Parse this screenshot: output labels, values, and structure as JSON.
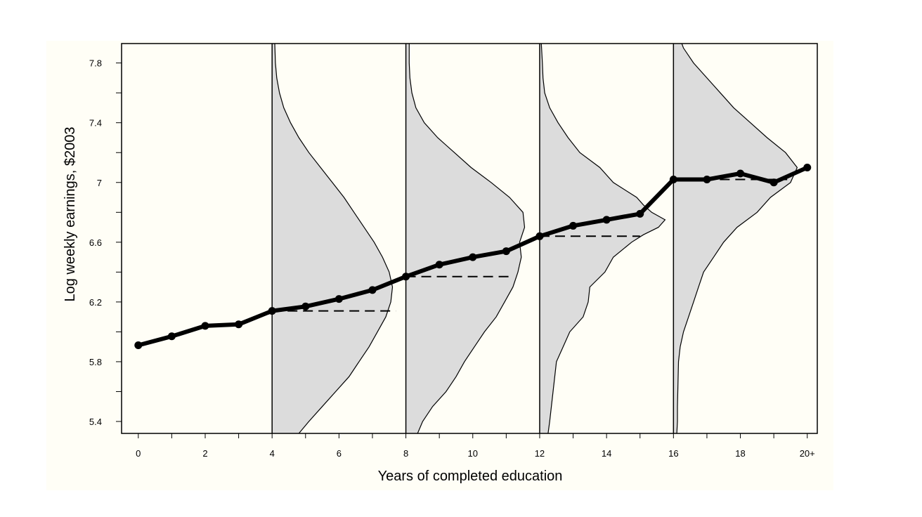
{
  "chart_data": {
    "type": "line",
    "xlabel": "Years of completed education",
    "ylabel": "Log weekly earnings, $2003",
    "xlim": [
      -0.5,
      20.3
    ],
    "ylim": [
      5.32,
      7.93
    ],
    "x_ticks": [
      0,
      2,
      4,
      6,
      8,
      10,
      12,
      14,
      16,
      18,
      20
    ],
    "x_tick_labels": [
      "0",
      "2",
      "4",
      "6",
      "8",
      "10",
      "12",
      "14",
      "16",
      "18",
      "20+"
    ],
    "x_minor_ticks": [
      0,
      1,
      2,
      3,
      4,
      5,
      6,
      7,
      8,
      9,
      10,
      11,
      12,
      13,
      14,
      15,
      16,
      17,
      18,
      19,
      20
    ],
    "y_ticks": [
      5.4,
      5.8,
      6.2,
      6.6,
      7.0,
      7.4,
      7.8
    ],
    "y_tick_labels": [
      "5.4",
      "5.8",
      "6.2",
      "6.6",
      "7",
      "7.4",
      "7.8"
    ],
    "y_minor_ticks": [
      5.4,
      5.6,
      5.8,
      6.0,
      6.2,
      6.4,
      6.6,
      6.8,
      7.0,
      7.2,
      7.4,
      7.6,
      7.8
    ],
    "grid": false,
    "legend": "none",
    "series": [
      {
        "x": [
          0,
          1,
          2,
          3,
          4,
          5,
          6,
          7,
          8,
          9,
          10,
          11,
          12,
          13,
          14,
          15,
          16,
          17,
          18,
          19,
          20
        ],
        "y": [
          5.91,
          5.97,
          6.04,
          6.05,
          6.14,
          6.17,
          6.22,
          6.28,
          6.37,
          6.45,
          6.5,
          6.54,
          6.64,
          6.71,
          6.75,
          6.79,
          7.02,
          7.02,
          7.06,
          7.0,
          7.1
        ]
      }
    ],
    "density_groups": [
      {
        "base_x": 4,
        "median_y": 6.14,
        "median_to_x": 7.7,
        "profile": [
          [
            5.32,
            0.8
          ],
          [
            5.4,
            1.1
          ],
          [
            5.5,
            1.5
          ],
          [
            5.6,
            1.9
          ],
          [
            5.7,
            2.3
          ],
          [
            5.8,
            2.6
          ],
          [
            5.9,
            2.9
          ],
          [
            6.0,
            3.15
          ],
          [
            6.1,
            3.4
          ],
          [
            6.2,
            3.55
          ],
          [
            6.3,
            3.6
          ],
          [
            6.4,
            3.5
          ],
          [
            6.5,
            3.3
          ],
          [
            6.6,
            3.05
          ],
          [
            6.7,
            2.75
          ],
          [
            6.8,
            2.45
          ],
          [
            6.9,
            2.15
          ],
          [
            7.0,
            1.8
          ],
          [
            7.1,
            1.45
          ],
          [
            7.2,
            1.1
          ],
          [
            7.3,
            0.8
          ],
          [
            7.4,
            0.55
          ],
          [
            7.5,
            0.35
          ],
          [
            7.6,
            0.22
          ],
          [
            7.7,
            0.14
          ],
          [
            7.8,
            0.1
          ],
          [
            7.93,
            0.08
          ]
        ]
      },
      {
        "base_x": 8,
        "median_y": 6.37,
        "median_to_x": 11.2,
        "profile": [
          [
            5.32,
            0.35
          ],
          [
            5.4,
            0.5
          ],
          [
            5.5,
            0.8
          ],
          [
            5.6,
            1.2
          ],
          [
            5.7,
            1.5
          ],
          [
            5.8,
            1.75
          ],
          [
            5.9,
            2.05
          ],
          [
            6.0,
            2.35
          ],
          [
            6.1,
            2.7
          ],
          [
            6.2,
            2.95
          ],
          [
            6.3,
            3.2
          ],
          [
            6.4,
            3.35
          ],
          [
            6.5,
            3.45
          ],
          [
            6.6,
            3.4
          ],
          [
            6.7,
            3.55
          ],
          [
            6.8,
            3.5
          ],
          [
            6.9,
            3.1
          ],
          [
            7.0,
            2.55
          ],
          [
            7.1,
            1.95
          ],
          [
            7.2,
            1.45
          ],
          [
            7.3,
            0.95
          ],
          [
            7.4,
            0.55
          ],
          [
            7.5,
            0.3
          ],
          [
            7.6,
            0.18
          ],
          [
            7.7,
            0.12
          ],
          [
            7.8,
            0.1
          ],
          [
            7.93,
            0.1
          ]
        ]
      },
      {
        "base_x": 12,
        "median_y": 6.64,
        "median_to_x": 15.0,
        "profile": [
          [
            5.32,
            0.25
          ],
          [
            5.4,
            0.3
          ],
          [
            5.5,
            0.35
          ],
          [
            5.6,
            0.4
          ],
          [
            5.7,
            0.45
          ],
          [
            5.8,
            0.5
          ],
          [
            5.9,
            0.7
          ],
          [
            6.0,
            0.9
          ],
          [
            6.1,
            1.3
          ],
          [
            6.2,
            1.45
          ],
          [
            6.3,
            1.5
          ],
          [
            6.4,
            1.95
          ],
          [
            6.5,
            2.2
          ],
          [
            6.6,
            2.75
          ],
          [
            6.65,
            3.1
          ],
          [
            6.7,
            3.55
          ],
          [
            6.75,
            3.75
          ],
          [
            6.8,
            3.35
          ],
          [
            6.85,
            3.1
          ],
          [
            6.9,
            2.9
          ],
          [
            7.0,
            2.2
          ],
          [
            7.1,
            1.8
          ],
          [
            7.2,
            1.2
          ],
          [
            7.3,
            0.85
          ],
          [
            7.4,
            0.55
          ],
          [
            7.5,
            0.3
          ],
          [
            7.6,
            0.15
          ],
          [
            7.7,
            0.1
          ],
          [
            7.8,
            0.08
          ],
          [
            7.93,
            0.05
          ]
        ]
      },
      {
        "base_x": 16,
        "median_y": 7.02,
        "median_to_x": 19.4,
        "profile": [
          [
            5.32,
            0.1
          ],
          [
            5.4,
            0.12
          ],
          [
            5.5,
            0.12
          ],
          [
            5.6,
            0.13
          ],
          [
            5.7,
            0.14
          ],
          [
            5.8,
            0.15
          ],
          [
            5.9,
            0.2
          ],
          [
            6.0,
            0.3
          ],
          [
            6.1,
            0.45
          ],
          [
            6.2,
            0.6
          ],
          [
            6.3,
            0.75
          ],
          [
            6.4,
            0.9
          ],
          [
            6.5,
            1.2
          ],
          [
            6.6,
            1.5
          ],
          [
            6.7,
            1.9
          ],
          [
            6.8,
            2.5
          ],
          [
            6.9,
            2.9
          ],
          [
            7.0,
            3.5
          ],
          [
            7.1,
            3.7
          ],
          [
            7.2,
            3.35
          ],
          [
            7.3,
            2.8
          ],
          [
            7.4,
            2.3
          ],
          [
            7.5,
            1.8
          ],
          [
            7.6,
            1.4
          ],
          [
            7.7,
            1.0
          ],
          [
            7.8,
            0.6
          ],
          [
            7.9,
            0.3
          ],
          [
            7.93,
            0.25
          ]
        ]
      }
    ]
  }
}
